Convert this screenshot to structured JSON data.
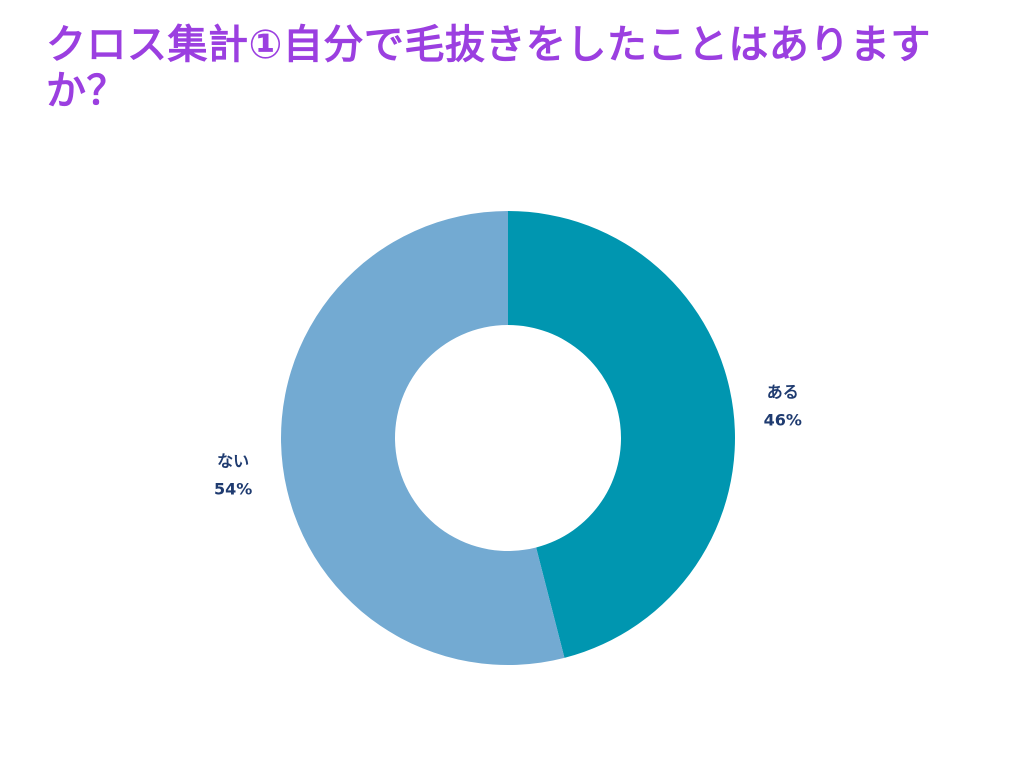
{
  "title": "クロス集計①自分で毛抜きをしたことはありますか？",
  "colors": {
    "title": "#9b3fe0",
    "label": "#1f3b70"
  },
  "chart_data": {
    "type": "pie",
    "donut": true,
    "title": "クロス集計①自分で毛抜きをしたことはありますか？",
    "slices": [
      {
        "label": "ある",
        "value": 46,
        "display": "46%",
        "color": "#0096b0"
      },
      {
        "label": "ない",
        "value": 54,
        "display": "54%",
        "color": "#73aad2"
      }
    ]
  }
}
